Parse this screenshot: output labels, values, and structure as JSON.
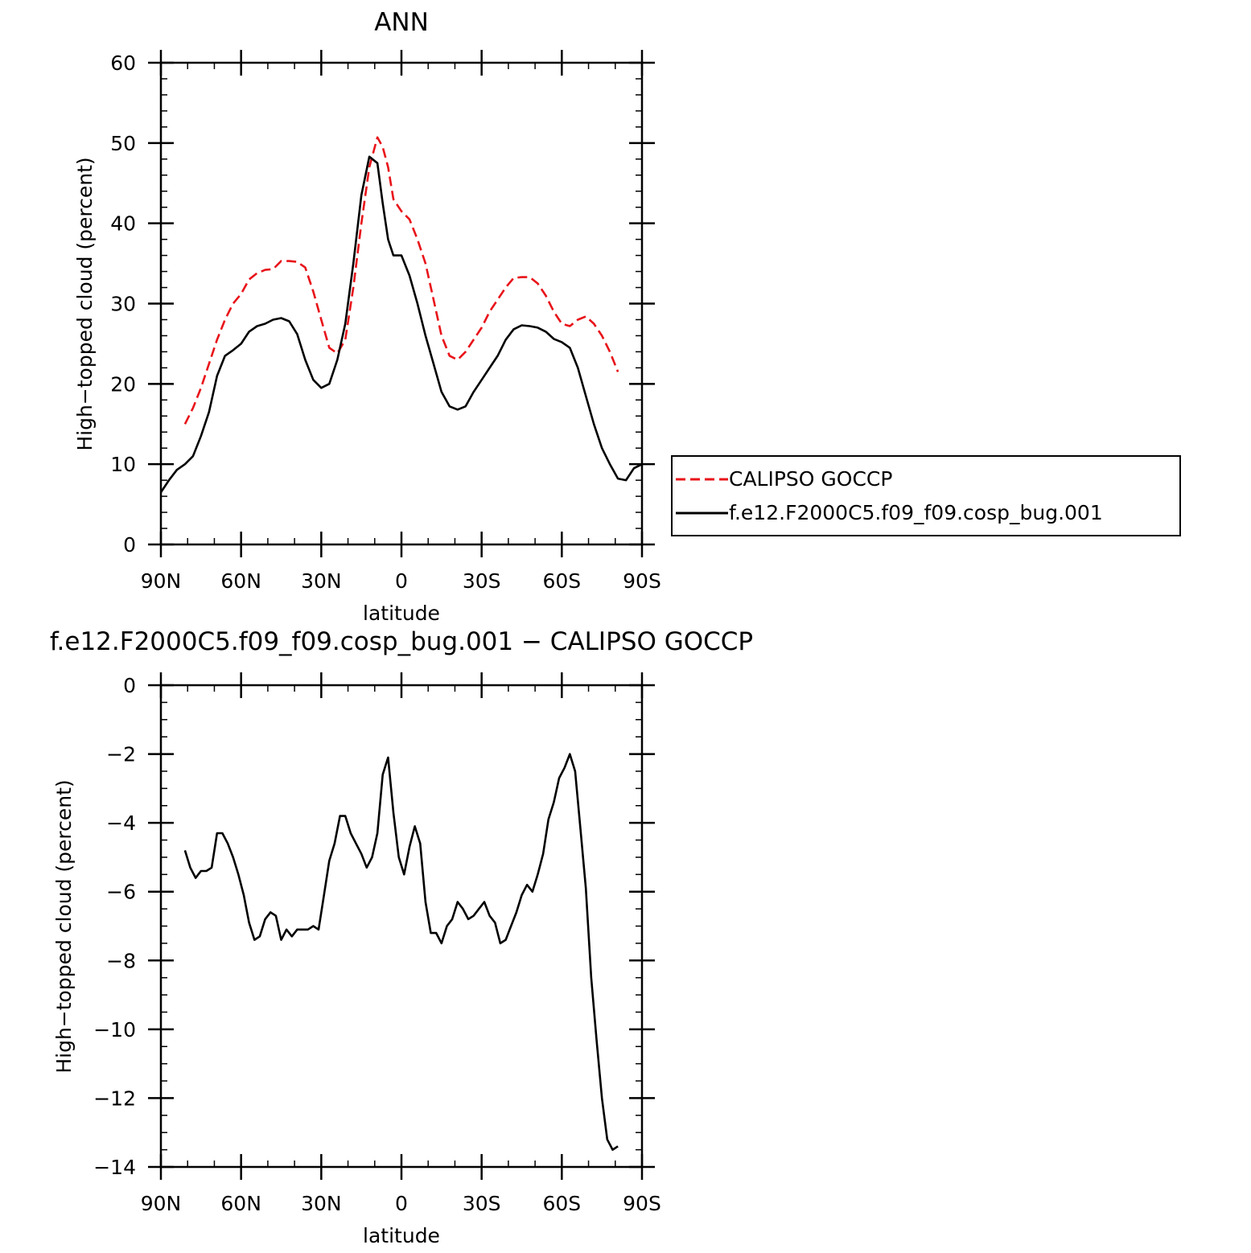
{
  "chart_data": [
    {
      "type": "line",
      "title": "ANN",
      "xlabel": "latitude",
      "ylabel": "High−topped cloud (percent)",
      "x_tick_labels": [
        "90N",
        "60N",
        "30N",
        "0",
        "30S",
        "60S",
        "90S"
      ],
      "y_tick_labels": [
        "0",
        "10",
        "20",
        "30",
        "40",
        "50",
        "60"
      ],
      "xlim": [
        90,
        -90
      ],
      "ylim": [
        0,
        60
      ],
      "legend_position": "right",
      "series": [
        {
          "name": "CALIPSO GOCCP",
          "color": "#e8141a",
          "dash": "dashed",
          "x": [
            81,
            78,
            75,
            72,
            69,
            66,
            63,
            60,
            57,
            54,
            51,
            48,
            45,
            42,
            39,
            36,
            33,
            30,
            27,
            24,
            21,
            18,
            15,
            12,
            9,
            7,
            5,
            3,
            0,
            -3,
            -6,
            -9,
            -12,
            -15,
            -18,
            -21,
            -24,
            -27,
            -30,
            -33,
            -36,
            -39,
            -42,
            -45,
            -48,
            -51,
            -54,
            -57,
            -60,
            -63,
            -66,
            -69,
            -72,
            -75,
            -78,
            -81
          ],
          "y": [
            15,
            17,
            19.5,
            22.5,
            25.5,
            28,
            30,
            31.2,
            33,
            33.8,
            34.2,
            34.3,
            35.3,
            35.3,
            35.2,
            34.5,
            31.5,
            28,
            24.5,
            23.8,
            25.5,
            32,
            40,
            47,
            50.7,
            49.5,
            47,
            43,
            41.5,
            40.5,
            38,
            35,
            30.5,
            26,
            23.5,
            23,
            24,
            25.5,
            27,
            29,
            30.5,
            32,
            33.2,
            33.3,
            33.3,
            32.5,
            31,
            29,
            27.5,
            27.2,
            28,
            28.4,
            27.5,
            26,
            24,
            21.5
          ]
        },
        {
          "name": "f.e12.F2000C5.f09_f09.cosp_bug.001",
          "color": "#000000",
          "dash": "solid",
          "x": [
            90,
            87,
            84,
            81,
            78,
            75,
            72,
            69,
            66,
            63,
            60,
            57,
            54,
            51,
            48,
            45,
            42,
            39,
            36,
            33,
            30,
            27,
            24,
            21,
            18,
            15,
            12,
            9,
            7,
            5,
            3,
            0,
            -3,
            -6,
            -9,
            -12,
            -15,
            -18,
            -21,
            -24,
            -27,
            -30,
            -33,
            -36,
            -39,
            -42,
            -45,
            -48,
            -51,
            -54,
            -57,
            -60,
            -63,
            -66,
            -69,
            -72,
            -75,
            -78,
            -81,
            -84,
            -87,
            -90
          ],
          "y": [
            6.5,
            8,
            9.3,
            10,
            11,
            13.5,
            16.5,
            21,
            23.5,
            24.2,
            25,
            26.5,
            27.2,
            27.5,
            28,
            28.2,
            27.8,
            26.2,
            23,
            20.5,
            19.5,
            20,
            23,
            27.5,
            35,
            43.5,
            48.3,
            47.5,
            42.5,
            38,
            36,
            36,
            33.5,
            30,
            26,
            22.5,
            19,
            17.2,
            16.8,
            17.2,
            19,
            20.5,
            22,
            23.5,
            25.5,
            26.8,
            27.3,
            27.2,
            27,
            26.5,
            25.6,
            25.2,
            24.5,
            22,
            18.5,
            15,
            12,
            10,
            8.2,
            8,
            9.5,
            10
          ]
        }
      ]
    },
    {
      "type": "line",
      "title": "f.e12.F2000C5.f09_f09.cosp_bug.001 − CALIPSO GOCCP",
      "xlabel": "latitude",
      "ylabel": "High−topped cloud (percent)",
      "x_tick_labels": [
        "90N",
        "60N",
        "30N",
        "0",
        "30S",
        "60S",
        "90S"
      ],
      "y_tick_labels": [
        "0",
        "−2",
        "−4",
        "−6",
        "−8",
        "−10",
        "−12",
        "−14"
      ],
      "xlim": [
        90,
        -90
      ],
      "ylim": [
        -14,
        0
      ],
      "series": [
        {
          "name": "",
          "color": "#000000",
          "dash": "solid",
          "x": [
            81,
            79,
            77,
            75,
            73,
            71,
            69,
            67,
            65,
            63,
            61,
            59,
            57,
            55,
            53,
            51,
            49,
            47,
            45,
            43,
            41,
            39,
            37,
            35,
            33,
            31,
            29,
            27,
            25,
            23,
            21,
            19,
            17,
            15,
            13,
            11,
            9,
            7,
            5,
            3,
            1,
            -1,
            -3,
            -5,
            -7,
            -9,
            -11,
            -13,
            -15,
            -17,
            -19,
            -21,
            -23,
            -25,
            -27,
            -29,
            -31,
            -33,
            -35,
            -37,
            -39,
            -41,
            -43,
            -45,
            -47,
            -49,
            -51,
            -53,
            -55,
            -57,
            -59,
            -61,
            -63,
            -65,
            -67,
            -69,
            -71,
            -73,
            -75,
            -77,
            -79,
            -81
          ],
          "y": [
            -4.8,
            -5.3,
            -5.6,
            -5.4,
            -5.4,
            -5.3,
            -4.3,
            -4.3,
            -4.6,
            -5.0,
            -5.5,
            -6.1,
            -6.9,
            -7.4,
            -7.3,
            -6.8,
            -6.6,
            -6.7,
            -7.4,
            -7.1,
            -7.3,
            -7.1,
            -7.1,
            -7.1,
            -7.0,
            -7.1,
            -6.1,
            -5.1,
            -4.6,
            -3.8,
            -3.8,
            -4.3,
            -4.6,
            -4.9,
            -5.3,
            -5.0,
            -4.3,
            -2.6,
            -2.1,
            -3.7,
            -5.0,
            -5.5,
            -4.7,
            -4.1,
            -4.6,
            -6.3,
            -7.2,
            -7.2,
            -7.5,
            -7.0,
            -6.8,
            -6.3,
            -6.5,
            -6.8,
            -6.7,
            -6.5,
            -6.3,
            -6.7,
            -6.9,
            -7.5,
            -7.4,
            -7.0,
            -6.6,
            -6.1,
            -5.8,
            -6.0,
            -5.5,
            -4.9,
            -3.9,
            -3.4,
            -2.7,
            -2.4,
            -2.0,
            -2.5,
            -4.2,
            -5.9,
            -8.5,
            -10.3,
            -12.0,
            -13.2,
            -13.5,
            -13.4
          ]
        }
      ]
    }
  ]
}
